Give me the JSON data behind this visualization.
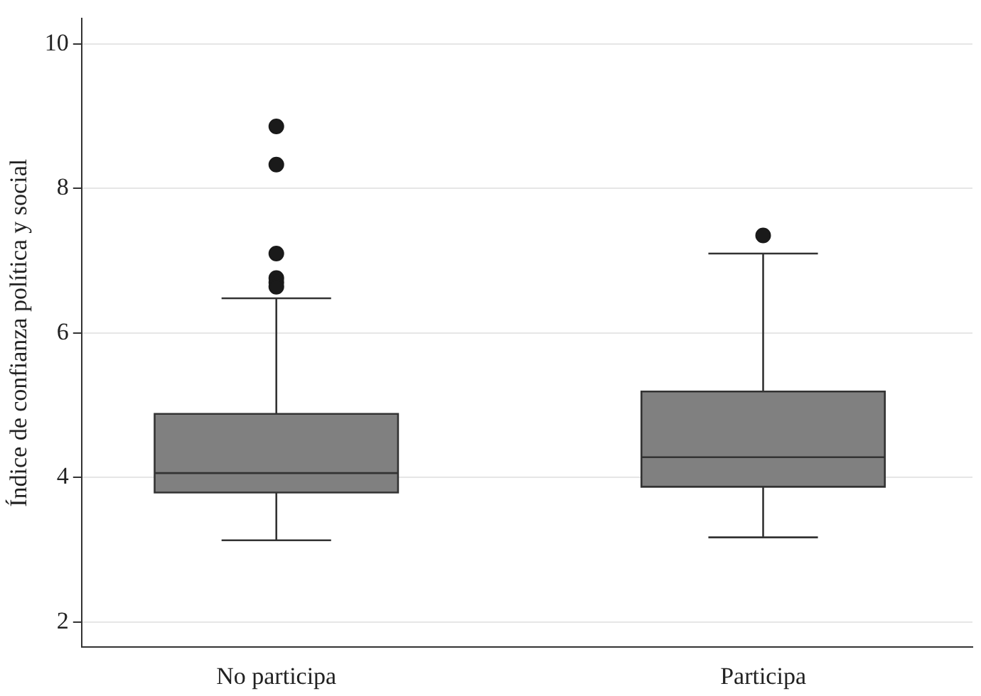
{
  "chart_data": {
    "type": "box",
    "ylabel": "Índice de confianza política y social",
    "categories": [
      "No participa",
      "Participa"
    ],
    "boxes": [
      {
        "low": 3.13,
        "q1": 3.79,
        "median": 4.06,
        "q3": 4.88,
        "high": 6.48,
        "outliers": [
          8.86,
          8.33,
          7.1,
          6.76,
          6.7,
          6.64
        ]
      },
      {
        "low": 3.17,
        "q1": 3.87,
        "median": 4.28,
        "q3": 5.19,
        "high": 7.1,
        "outliers": [
          7.35
        ]
      }
    ],
    "color": "#808080",
    "ylim": [
      1.65,
      10.35
    ],
    "yticks": [
      2,
      4,
      6,
      8,
      10
    ],
    "grid": "y",
    "legend": false
  }
}
